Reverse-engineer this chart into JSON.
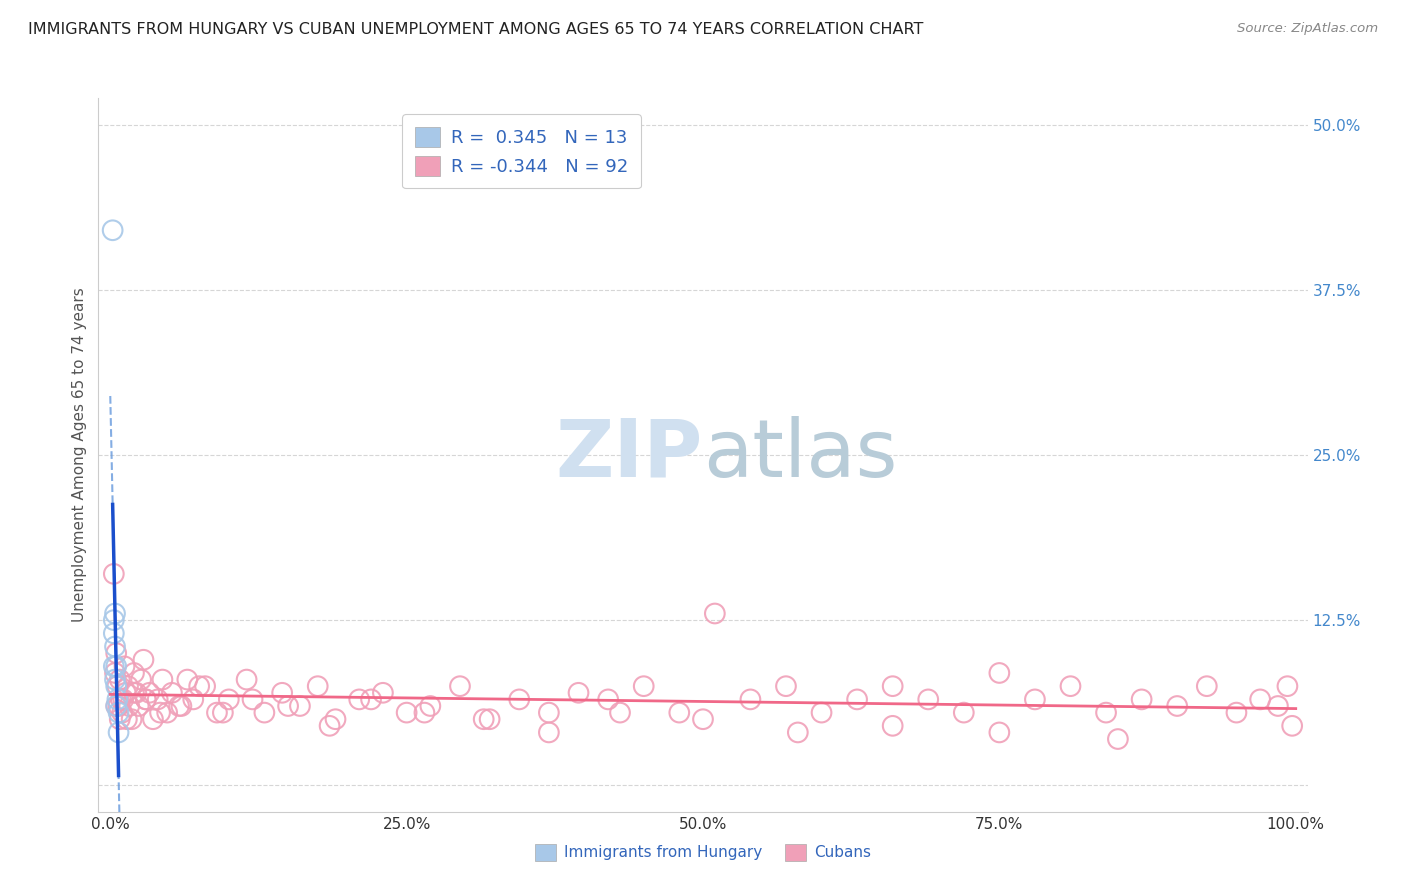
{
  "title": "IMMIGRANTS FROM HUNGARY VS CUBAN UNEMPLOYMENT AMONG AGES 65 TO 74 YEARS CORRELATION CHART",
  "source": "Source: ZipAtlas.com",
  "ylabel": "Unemployment Among Ages 65 to 74 years",
  "xlim": [
    -0.01,
    1.01
  ],
  "ylim": [
    -0.02,
    0.52
  ],
  "x_ticks": [
    0.0,
    0.25,
    0.5,
    0.75,
    1.0
  ],
  "x_tick_labels": [
    "0.0%",
    "25.0%",
    "50.0%",
    "75.0%",
    "100.0%"
  ],
  "y_ticks": [
    0.0,
    0.125,
    0.25,
    0.375,
    0.5
  ],
  "y_tick_labels": [
    "",
    "12.5%",
    "25.0%",
    "37.5%",
    "50.0%"
  ],
  "blue_color": "#a8c8e8",
  "pink_color": "#f0a0b8",
  "trend_blue_solid": "#1a4fcc",
  "trend_blue_dashed": "#6699dd",
  "trend_pink": "#f06888",
  "watermark_color": "#d0e0f0",
  "hungary_x": [
    0.002,
    0.003,
    0.003,
    0.003,
    0.004,
    0.004,
    0.004,
    0.005,
    0.005,
    0.005,
    0.006,
    0.007,
    0.007
  ],
  "hungary_y": [
    0.42,
    0.125,
    0.115,
    0.09,
    0.13,
    0.105,
    0.08,
    0.09,
    0.075,
    0.06,
    0.065,
    0.055,
    0.04
  ],
  "cuban_x": [
    0.003,
    0.004,
    0.005,
    0.006,
    0.007,
    0.008,
    0.009,
    0.01,
    0.012,
    0.013,
    0.015,
    0.016,
    0.018,
    0.02,
    0.022,
    0.024,
    0.026,
    0.028,
    0.03,
    0.033,
    0.036,
    0.04,
    0.044,
    0.048,
    0.052,
    0.06,
    0.065,
    0.07,
    0.08,
    0.09,
    0.1,
    0.115,
    0.13,
    0.145,
    0.16,
    0.175,
    0.19,
    0.21,
    0.23,
    0.25,
    0.27,
    0.295,
    0.32,
    0.345,
    0.37,
    0.395,
    0.42,
    0.45,
    0.48,
    0.51,
    0.54,
    0.57,
    0.6,
    0.63,
    0.66,
    0.69,
    0.72,
    0.75,
    0.78,
    0.81,
    0.84,
    0.87,
    0.9,
    0.925,
    0.95,
    0.97,
    0.985,
    0.993,
    0.997,
    0.005,
    0.008,
    0.011,
    0.014,
    0.02,
    0.03,
    0.042,
    0.058,
    0.075,
    0.095,
    0.12,
    0.15,
    0.185,
    0.22,
    0.265,
    0.315,
    0.37,
    0.43,
    0.5,
    0.58,
    0.66,
    0.75,
    0.85
  ],
  "cuban_y": [
    0.16,
    0.085,
    0.1,
    0.075,
    0.06,
    0.08,
    0.065,
    0.055,
    0.09,
    0.07,
    0.075,
    0.06,
    0.05,
    0.085,
    0.07,
    0.06,
    0.08,
    0.095,
    0.065,
    0.07,
    0.05,
    0.065,
    0.08,
    0.055,
    0.07,
    0.06,
    0.08,
    0.065,
    0.075,
    0.055,
    0.065,
    0.08,
    0.055,
    0.07,
    0.06,
    0.075,
    0.05,
    0.065,
    0.07,
    0.055,
    0.06,
    0.075,
    0.05,
    0.065,
    0.055,
    0.07,
    0.065,
    0.075,
    0.055,
    0.13,
    0.065,
    0.075,
    0.055,
    0.065,
    0.075,
    0.065,
    0.055,
    0.085,
    0.065,
    0.075,
    0.055,
    0.065,
    0.06,
    0.075,
    0.055,
    0.065,
    0.06,
    0.075,
    0.045,
    0.06,
    0.05,
    0.065,
    0.05,
    0.07,
    0.065,
    0.055,
    0.06,
    0.075,
    0.055,
    0.065,
    0.06,
    0.045,
    0.065,
    0.055,
    0.05,
    0.04,
    0.055,
    0.05,
    0.04,
    0.045,
    0.04,
    0.035
  ]
}
